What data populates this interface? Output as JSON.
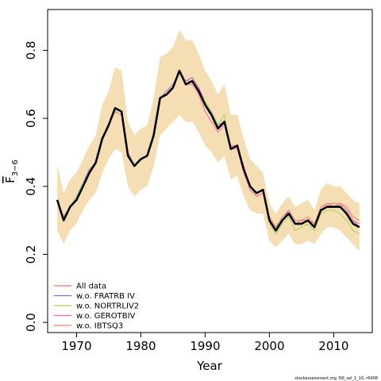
{
  "chart_data": {
    "type": "line",
    "ylabel": {
      "bar": "F",
      "sub": "3−6"
    },
    "xlabel": "Year",
    "xlim": [
      1965.5,
      2016
    ],
    "ylim": [
      -0.03,
      0.92
    ],
    "xticks": [
      1970,
      1980,
      1990,
      2000,
      2010
    ],
    "yticks": [
      "0.0",
      "0.2",
      "0.4",
      "0.6",
      "0.8"
    ],
    "legend_position": "bottom-left",
    "credit": "stockassessment.org, NS_sel_1_10, r6408",
    "x": [
      1967,
      1968,
      1969,
      1970,
      1971,
      1972,
      1973,
      1974,
      1975,
      1976,
      1977,
      1978,
      1979,
      1980,
      1981,
      1982,
      1983,
      1984,
      1985,
      1986,
      1987,
      1988,
      1989,
      1990,
      1991,
      1992,
      1993,
      1994,
      1995,
      1996,
      1997,
      1998,
      1999,
      2000,
      2001,
      2002,
      2003,
      2004,
      2005,
      2006,
      2007,
      2008,
      2009,
      2010,
      2011,
      2012,
      2013,
      2014
    ],
    "band": {
      "color": "#f5deb3",
      "lower": [
        0.27,
        0.23,
        0.27,
        0.29,
        0.33,
        0.36,
        0.38,
        0.44,
        0.48,
        0.51,
        0.5,
        0.4,
        0.37,
        0.39,
        0.4,
        0.46,
        0.55,
        0.57,
        0.59,
        0.61,
        0.59,
        0.59,
        0.56,
        0.52,
        0.5,
        0.47,
        0.49,
        0.42,
        0.43,
        0.37,
        0.33,
        0.32,
        0.32,
        0.24,
        0.22,
        0.24,
        0.26,
        0.23,
        0.23,
        0.24,
        0.23,
        0.26,
        0.28,
        0.28,
        0.27,
        0.25,
        0.23,
        0.21
      ],
      "upper": [
        0.46,
        0.38,
        0.42,
        0.44,
        0.48,
        0.52,
        0.55,
        0.64,
        0.68,
        0.75,
        0.74,
        0.59,
        0.55,
        0.57,
        0.58,
        0.66,
        0.78,
        0.79,
        0.81,
        0.86,
        0.83,
        0.83,
        0.79,
        0.74,
        0.71,
        0.67,
        0.7,
        0.61,
        0.61,
        0.54,
        0.48,
        0.46,
        0.44,
        0.35,
        0.32,
        0.35,
        0.37,
        0.34,
        0.35,
        0.36,
        0.33,
        0.39,
        0.41,
        0.4,
        0.4,
        0.38,
        0.36,
        0.35
      ]
    },
    "series": [
      {
        "name": "",
        "color": "#000000",
        "width": 2.4,
        "values": [
          0.36,
          0.3,
          0.34,
          0.36,
          0.4,
          0.44,
          0.47,
          0.54,
          0.58,
          0.63,
          0.62,
          0.49,
          0.46,
          0.48,
          0.49,
          0.55,
          0.66,
          0.67,
          0.69,
          0.74,
          0.7,
          0.71,
          0.68,
          0.64,
          0.61,
          0.57,
          0.59,
          0.51,
          0.52,
          0.45,
          0.4,
          0.38,
          0.39,
          0.3,
          0.27,
          0.3,
          0.32,
          0.29,
          0.29,
          0.3,
          0.28,
          0.33,
          0.34,
          0.34,
          0.34,
          0.32,
          0.29,
          0.28
        ]
      },
      {
        "name": "All data",
        "color": "#ff6a6a",
        "width": 1,
        "values": [
          0.36,
          0.3,
          0.34,
          0.36,
          0.4,
          0.44,
          0.47,
          0.54,
          0.58,
          0.63,
          0.62,
          0.49,
          0.46,
          0.48,
          0.49,
          0.55,
          0.66,
          0.67,
          0.69,
          0.74,
          0.7,
          0.71,
          0.68,
          0.64,
          0.61,
          0.57,
          0.59,
          0.51,
          0.52,
          0.45,
          0.4,
          0.38,
          0.39,
          0.3,
          0.27,
          0.3,
          0.32,
          0.29,
          0.29,
          0.3,
          0.28,
          0.33,
          0.34,
          0.34,
          0.34,
          0.32,
          0.29,
          0.28
        ]
      },
      {
        "name": "w.o. FRATRB IV",
        "color": "#9a5fd1",
        "width": 1,
        "values": [
          0.36,
          0.31,
          0.34,
          0.37,
          0.41,
          0.45,
          0.47,
          0.54,
          0.58,
          0.63,
          0.62,
          0.5,
          0.46,
          0.48,
          0.49,
          0.55,
          0.66,
          0.68,
          0.7,
          0.74,
          0.71,
          0.72,
          0.69,
          0.65,
          0.62,
          0.58,
          0.59,
          0.51,
          0.52,
          0.46,
          0.4,
          0.38,
          0.39,
          0.31,
          0.28,
          0.3,
          0.33,
          0.29,
          0.29,
          0.3,
          0.28,
          0.33,
          0.34,
          0.34,
          0.35,
          0.33,
          0.3,
          0.28
        ]
      },
      {
        "name": "w.o. NORTRLIV2",
        "color": "#a4d65e",
        "width": 1,
        "values": [
          0.36,
          0.3,
          0.34,
          0.37,
          0.41,
          0.44,
          0.47,
          0.54,
          0.58,
          0.62,
          0.61,
          0.49,
          0.46,
          0.48,
          0.49,
          0.55,
          0.66,
          0.67,
          0.69,
          0.73,
          0.7,
          0.71,
          0.68,
          0.65,
          0.62,
          0.58,
          0.61,
          0.51,
          0.52,
          0.45,
          0.4,
          0.37,
          0.38,
          0.29,
          0.26,
          0.29,
          0.31,
          0.27,
          0.28,
          0.29,
          0.27,
          0.32,
          0.33,
          0.33,
          0.32,
          0.3,
          0.27,
          0.26
        ]
      },
      {
        "name": "w.o. GEROTBIV",
        "color": "#ff69b4",
        "width": 1,
        "values": [
          0.36,
          0.3,
          0.34,
          0.36,
          0.4,
          0.44,
          0.47,
          0.54,
          0.58,
          0.63,
          0.62,
          0.49,
          0.46,
          0.48,
          0.49,
          0.55,
          0.66,
          0.67,
          0.69,
          0.74,
          0.7,
          0.7,
          0.67,
          0.62,
          0.59,
          0.56,
          0.58,
          0.51,
          0.51,
          0.44,
          0.39,
          0.37,
          0.38,
          0.3,
          0.27,
          0.3,
          0.32,
          0.29,
          0.3,
          0.3,
          0.29,
          0.33,
          0.35,
          0.34,
          0.35,
          0.33,
          0.3,
          0.29
        ]
      },
      {
        "name": "w.o. IBTSQ3",
        "color": "#f08070",
        "width": 1,
        "values": [
          0.36,
          0.3,
          0.34,
          0.36,
          0.4,
          0.44,
          0.47,
          0.54,
          0.58,
          0.62,
          0.61,
          0.49,
          0.46,
          0.48,
          0.49,
          0.55,
          0.66,
          0.67,
          0.69,
          0.74,
          0.71,
          0.71,
          0.68,
          0.64,
          0.61,
          0.57,
          0.59,
          0.52,
          0.52,
          0.45,
          0.4,
          0.38,
          0.39,
          0.31,
          0.28,
          0.31,
          0.33,
          0.3,
          0.3,
          0.31,
          0.29,
          0.34,
          0.35,
          0.35,
          0.35,
          0.34,
          0.31,
          0.3
        ]
      }
    ]
  }
}
